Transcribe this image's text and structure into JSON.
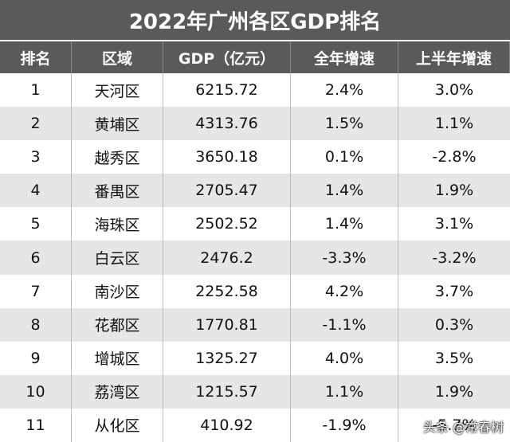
{
  "title": "2022年广州各区GDP排名",
  "table": {
    "header": [
      "排名",
      "区域",
      "GDP（亿元）",
      "全年增速",
      "上半年增速"
    ],
    "rows": [
      [
        "1",
        "天河区",
        "6215.72",
        "2.4%",
        "3.0%"
      ],
      [
        "2",
        "黄埔区",
        "4313.76",
        "1.5%",
        "1.1%"
      ],
      [
        "3",
        "越秀区",
        "3650.18",
        "0.1%",
        "-2.8%"
      ],
      [
        "4",
        "番禺区",
        "2705.47",
        "1.4%",
        "1.9%"
      ],
      [
        "5",
        "海珠区",
        "2502.52",
        "1.4%",
        "3.1%"
      ],
      [
        "6",
        "白云区",
        "2476.2",
        "-3.3%",
        "-3.2%"
      ],
      [
        "7",
        "南沙区",
        "2252.58",
        "4.2%",
        "3.7%"
      ],
      [
        "8",
        "花都区",
        "1770.81",
        "-1.1%",
        "0.3%"
      ],
      [
        "9",
        "增城区",
        "1325.27",
        "4.0%",
        "3.5%"
      ],
      [
        "10",
        "荔湾区",
        "1215.57",
        "1.1%",
        "1.9%"
      ],
      [
        "11",
        "从化区",
        "410.92",
        "-1.9%",
        "-5.7%"
      ]
    ]
  },
  "watermark": "头条 @常春树"
}
